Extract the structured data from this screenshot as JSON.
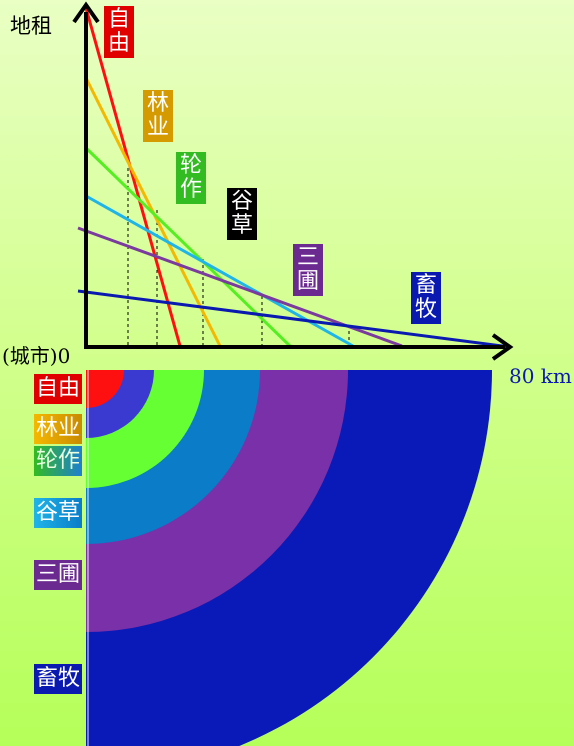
{
  "axes": {
    "y_label": "地租",
    "origin_label": "(城市)0",
    "x_end_label": "80 km"
  },
  "zones": [
    {
      "id": "ziyou",
      "name": "自由",
      "color": "#ff1a1a",
      "label_bg": "#e00000"
    },
    {
      "id": "linye",
      "name": "林业",
      "color": "#f5b800",
      "label_bg": "#d49a00"
    },
    {
      "id": "lunzuo",
      "name": "轮作",
      "color": "#55ee22",
      "label_bg": "#33bb22"
    },
    {
      "id": "gucao",
      "name": "谷草",
      "color": "#1fb5e8",
      "label_bg": "#000000"
    },
    {
      "id": "sanpu",
      "name": "三圃",
      "color": "#7a3a9e",
      "label_bg": "#6a2a90"
    },
    {
      "id": "xumu",
      "name": "畜牧",
      "color": "#0a1ab0",
      "label_bg": "#0a1ab0"
    }
  ],
  "legend": {
    "ziyou": "自由",
    "linye": "林业",
    "lunzuo": "轮作",
    "gucao": "谷草",
    "sanpu": "三圃",
    "xumu": "畜牧"
  },
  "ring_colors": [
    "#ff1010",
    "#3a3ad0",
    "#66ff33",
    "#0a7cc8",
    "#7a30a8",
    "#0a1ab8"
  ]
}
